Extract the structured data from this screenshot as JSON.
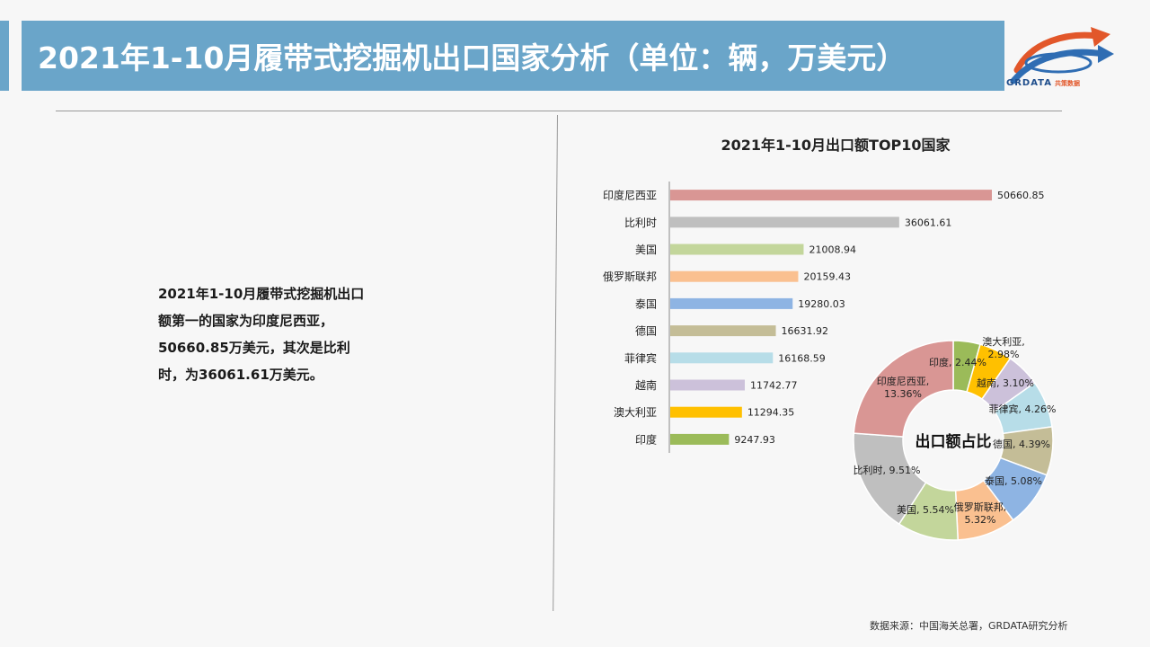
{
  "page": {
    "title": "2021年1-10月履带式挖掘机出口国家分析（单位：辆，万美元）",
    "summary_lines": [
      "2021年1-10月履带式挖掘机出口",
      "额第一的国家为印度尼西亚，",
      "50660.85万美元，其次是比利",
      "时，为36061.61万美元。"
    ],
    "source": "数据来源：中国海关总署，GRDATA研究分析",
    "logo": {
      "name": "GRDATA",
      "subtitle": "共策数据"
    }
  },
  "chart_data": [
    {
      "type": "bar",
      "orientation": "horizontal",
      "title": "2021年1-10月出口额TOP10国家",
      "categories": [
        "印度尼西亚",
        "比利时",
        "美国",
        "俄罗斯联邦",
        "泰国",
        "德国",
        "菲律宾",
        "越南",
        "澳大利亚",
        "印度"
      ],
      "values": [
        50660.85,
        36061.61,
        21008.94,
        20159.43,
        19280.03,
        16631.92,
        16168.59,
        11742.77,
        11294.35,
        9247.93
      ],
      "value_labels": [
        "50660.85",
        "36061.61",
        "21008.94",
        "20159.43",
        "19280.03",
        "16631.92",
        "16168.59",
        "11742.77",
        "11294.35",
        "9247.93"
      ],
      "colors": [
        "#d99694",
        "#bfbfbf",
        "#c3d69b",
        "#fac090",
        "#8eb4e3",
        "#c4bd97",
        "#b7dde8",
        "#ccc1da",
        "#ffc000",
        "#9bbb59"
      ],
      "xlim": [
        0,
        60000
      ]
    },
    {
      "type": "pie",
      "donut": true,
      "center_label": "出口额占比",
      "slices": [
        {
          "name": "印度",
          "percent": 2.44,
          "label": "印度, 2.44%",
          "color": "#9bbb59"
        },
        {
          "name": "澳大利亚",
          "percent": 2.98,
          "label": "澳大利亚, 2.98%",
          "color": "#ffc000"
        },
        {
          "name": "越南",
          "percent": 3.1,
          "label": "越南, 3.10%",
          "color": "#ccc1da"
        },
        {
          "name": "菲律宾",
          "percent": 4.26,
          "label": "菲律宾, 4.26%",
          "color": "#b7dde8"
        },
        {
          "name": "德国",
          "percent": 4.39,
          "label": "德国, 4.39%",
          "color": "#c4bd97"
        },
        {
          "name": "泰国",
          "percent": 5.08,
          "label": "泰国, 5.08%",
          "color": "#8eb4e3"
        },
        {
          "name": "俄罗斯联邦",
          "percent": 5.32,
          "label": "俄罗斯联邦, 5.32%",
          "color": "#fac090"
        },
        {
          "name": "美国",
          "percent": 5.54,
          "label": "美国, 5.54%",
          "color": "#c3d69b"
        },
        {
          "name": "比利时",
          "percent": 9.51,
          "label": "比利时, 9.51%",
          "color": "#bfbfbf"
        },
        {
          "name": "印度尼西亚",
          "percent": 13.36,
          "label": "印度尼西亚, 13.36%",
          "color": "#d99694"
        }
      ]
    }
  ]
}
